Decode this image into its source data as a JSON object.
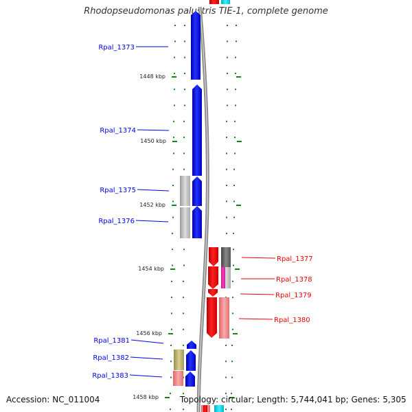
{
  "title": "Rhodopseudomonas palustris TIE-1, complete genome",
  "footer": {
    "accession": "Accession: NC_011004",
    "summary": "Topology: circular; Length: 5,744,041 bp; Genes: 5,305"
  },
  "colors": {
    "forward_gene": "#0000ee",
    "reverse_gene": "#ee0000",
    "grey_feature": "#b8b8b8",
    "dark_grey_feature": "#666666",
    "pink_feature": "#f08080",
    "magenta_feature": "#e020a0",
    "olive_feature": "#b8b070",
    "cyan_feature": "#00d8e8",
    "tick_marks": "#118811",
    "backbone": "#888888"
  },
  "kbp_labels": [
    "1448 kbp",
    "1450 kbp",
    "1452 kbp",
    "1454 kbp",
    "1456 kbp",
    "1458 kbp"
  ],
  "genes_left": [
    "Rpal_1373",
    "Rpal_1374",
    "Rpal_1375",
    "Rpal_1376",
    "Rpal_1381",
    "Rpal_1382",
    "Rpal_1383"
  ],
  "genes_right": [
    "Rpal_1377",
    "Rpal_1378",
    "Rpal_1379",
    "Rpal_1380"
  ]
}
